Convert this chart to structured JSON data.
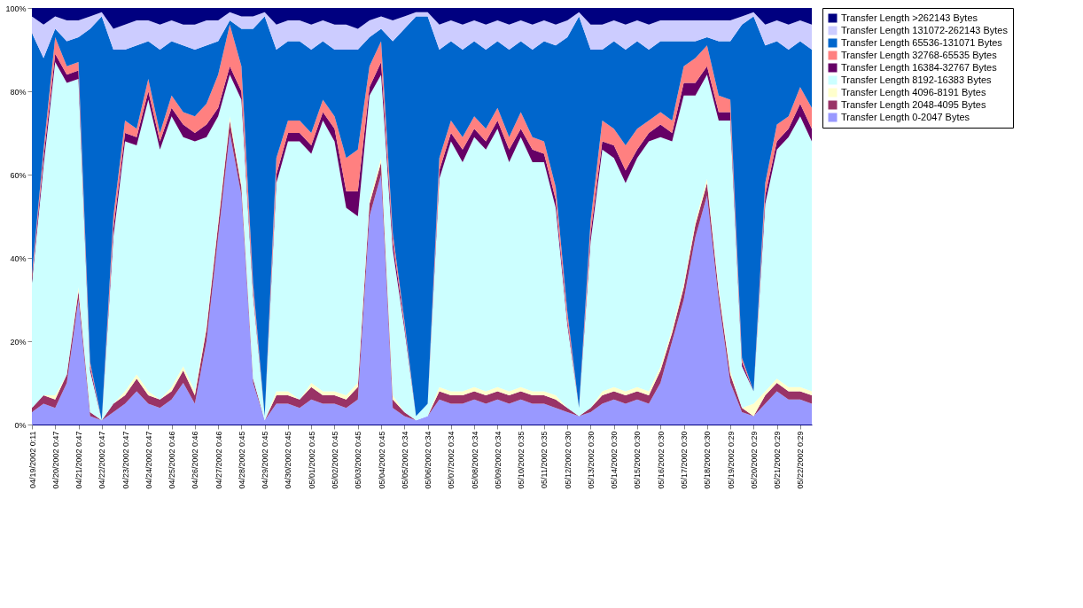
{
  "chart_data": {
    "type": "area",
    "stacked": true,
    "categories": [
      "04/19/2002 0:11",
      null,
      "04/20/2002 0:47",
      null,
      "04/21/2002 0:47",
      null,
      "04/22/2002 0:47",
      null,
      "04/23/2002 0:47",
      null,
      "04/24/2002 0:47",
      null,
      "04/25/2002 0:46",
      null,
      "04/26/2002 0:46",
      null,
      "04/27/2002 0:46",
      null,
      "04/28/2002 0:45",
      null,
      "04/29/2002 0:45",
      null,
      "04/30/2002 0:45",
      null,
      "05/01/2002 0:45",
      null,
      "05/02/2002 0:45",
      null,
      "05/03/2002 0:45",
      null,
      "05/04/2002 0:45",
      null,
      "05/05/2002 0:34",
      null,
      "05/06/2002 0:34",
      null,
      "05/07/2002 0:34",
      null,
      "05/08/2002 0:34",
      null,
      "05/09/2002 0:34",
      null,
      "05/10/2002 0:35",
      null,
      "05/11/2002 0:35",
      null,
      "05/12/2002 0:30",
      null,
      "05/13/2002 0:30",
      null,
      "05/14/2002 0:30",
      null,
      "05/15/2002 0:30",
      null,
      "05/16/2002 0:30",
      null,
      "05/17/2002 0:30",
      null,
      "05/18/2002 0:30",
      null,
      "05/19/2002 0:29",
      null,
      "05/20/2002 0:29",
      null,
      "05/21/2002 0:29",
      null,
      "05/22/2002 0:29",
      null
    ],
    "ylim": [
      0,
      100
    ],
    "yticks": [
      {
        "value": 0,
        "label": "0%"
      },
      {
        "value": 20,
        "label": "20%"
      },
      {
        "value": 40,
        "label": "40%"
      },
      {
        "value": 60,
        "label": "60%"
      },
      {
        "value": 80,
        "label": "80%"
      },
      {
        "value": 100,
        "label": "100%"
      }
    ],
    "legend": "right",
    "series": [
      {
        "name": "Transfer Length 0-2047 Bytes",
        "color": "#9999ff",
        "values": [
          3,
          5,
          4,
          10,
          30,
          2,
          1,
          3,
          5,
          8,
          5,
          4,
          6,
          10,
          5,
          20,
          45,
          70,
          55,
          10,
          1,
          5,
          5,
          4,
          6,
          5,
          5,
          4,
          6,
          50,
          60,
          4,
          2,
          1,
          2,
          6,
          5,
          5,
          6,
          5,
          6,
          5,
          6,
          5,
          5,
          4,
          3,
          2,
          3,
          5,
          6,
          5,
          6,
          5,
          10,
          20,
          30,
          45,
          55,
          30,
          10,
          3,
          2,
          5,
          8,
          6,
          6,
          5
        ]
      },
      {
        "name": "Transfer Length 2048-4095 Bytes",
        "color": "#993366",
        "values": [
          1,
          2,
          2,
          2,
          2,
          1,
          0,
          2,
          2,
          3,
          2,
          2,
          2,
          3,
          2,
          3,
          3,
          3,
          2,
          1,
          0,
          2,
          2,
          2,
          3,
          2,
          2,
          2,
          3,
          3,
          3,
          2,
          1,
          0,
          0,
          2,
          2,
          2,
          2,
          2,
          2,
          2,
          2,
          2,
          2,
          2,
          1,
          0,
          1,
          2,
          2,
          2,
          2,
          2,
          3,
          2,
          3,
          3,
          3,
          2,
          2,
          1,
          0,
          2,
          2,
          2,
          2,
          2
        ]
      },
      {
        "name": "Transfer Length 4096-8191 Bytes",
        "color": "#ffffcc",
        "values": [
          0,
          0,
          1,
          0,
          1,
          0,
          0,
          0,
          1,
          1,
          1,
          0,
          1,
          1,
          1,
          1,
          1,
          1,
          1,
          0,
          0,
          1,
          1,
          0,
          1,
          1,
          1,
          1,
          1,
          1,
          1,
          1,
          0,
          0,
          0,
          1,
          1,
          1,
          1,
          1,
          1,
          1,
          1,
          1,
          1,
          1,
          0,
          0,
          0,
          1,
          1,
          1,
          1,
          1,
          1,
          1,
          1,
          1,
          1,
          1,
          1,
          0,
          3,
          1,
          1,
          1,
          1,
          1
        ]
      },
      {
        "name": "Transfer Length 8192-16383 Bytes",
        "color": "#ccffff",
        "values": [
          30,
          55,
          80,
          70,
          50,
          10,
          0,
          40,
          60,
          55,
          70,
          60,
          65,
          55,
          60,
          45,
          25,
          10,
          20,
          20,
          1,
          50,
          60,
          62,
          55,
          65,
          60,
          45,
          40,
          25,
          20,
          35,
          20,
          1,
          3,
          50,
          60,
          55,
          60,
          58,
          62,
          55,
          60,
          55,
          55,
          45,
          20,
          2,
          40,
          58,
          55,
          50,
          55,
          60,
          55,
          45,
          45,
          30,
          25,
          40,
          60,
          10,
          3,
          45,
          55,
          60,
          65,
          60
        ]
      },
      {
        "name": "Transfer Length 16384-32767 Bytes",
        "color": "#660066",
        "values": [
          1,
          2,
          2,
          2,
          2,
          1,
          0,
          2,
          2,
          2,
          2,
          2,
          2,
          3,
          2,
          3,
          2,
          2,
          2,
          1,
          0,
          2,
          2,
          2,
          2,
          2,
          3,
          4,
          6,
          2,
          3,
          2,
          1,
          0,
          0,
          2,
          2,
          3,
          2,
          2,
          2,
          3,
          2,
          3,
          2,
          2,
          1,
          0,
          2,
          2,
          3,
          3,
          2,
          2,
          3,
          2,
          3,
          3,
          2,
          2,
          2,
          1,
          0,
          2,
          2,
          2,
          3,
          3
        ]
      },
      {
        "name": "Transfer Length 32768-65535 Bytes",
        "color": "#ff8080",
        "values": [
          1,
          2,
          4,
          2,
          2,
          1,
          0,
          3,
          3,
          2,
          3,
          2,
          3,
          3,
          4,
          5,
          8,
          10,
          6,
          2,
          0,
          4,
          3,
          3,
          3,
          3,
          3,
          8,
          10,
          5,
          5,
          2,
          1,
          0,
          0,
          3,
          3,
          3,
          3,
          3,
          3,
          3,
          4,
          3,
          3,
          3,
          2,
          0,
          3,
          5,
          4,
          6,
          5,
          3,
          3,
          3,
          4,
          6,
          5,
          4,
          3,
          1,
          0,
          3,
          4,
          3,
          4,
          5
        ]
      },
      {
        "name": "Transfer Length 65536-131071 Bytes",
        "color": "#0066cc",
        "values": [
          58,
          22,
          2,
          6,
          6,
          80,
          97,
          40,
          17,
          20,
          9,
          20,
          13,
          16,
          16,
          14,
          8,
          1,
          9,
          61,
          96,
          26,
          19,
          19,
          20,
          14,
          16,
          26,
          24,
          7,
          3,
          46,
          70,
          96,
          93,
          26,
          19,
          21,
          18,
          19,
          16,
          21,
          17,
          21,
          24,
          34,
          66,
          94,
          41,
          17,
          21,
          23,
          21,
          17,
          17,
          19,
          6,
          4,
          2,
          13,
          14,
          80,
          90,
          33,
          20,
          16,
          11,
          14
        ]
      },
      {
        "name": "Transfer Length 131072-262143 Bytes",
        "color": "#ccccff",
        "values": [
          4,
          8,
          3,
          5,
          4,
          3,
          1,
          5,
          6,
          6,
          5,
          6,
          5,
          5,
          6,
          6,
          5,
          2,
          3,
          3,
          1,
          6,
          5,
          5,
          6,
          5,
          6,
          6,
          5,
          4,
          3,
          5,
          3,
          1,
          1,
          6,
          5,
          6,
          5,
          6,
          5,
          6,
          5,
          6,
          5,
          5,
          4,
          1,
          6,
          6,
          5,
          6,
          5,
          6,
          5,
          5,
          5,
          5,
          4,
          5,
          5,
          2,
          1,
          5,
          5,
          6,
          5,
          6
        ]
      },
      {
        "name": "Transfer Length >262143 Bytes",
        "color": "#000080",
        "values": [
          2,
          4,
          2,
          3,
          3,
          2,
          1,
          5,
          4,
          3,
          3,
          4,
          3,
          4,
          4,
          3,
          3,
          1,
          2,
          2,
          1,
          4,
          3,
          3,
          4,
          3,
          4,
          4,
          5,
          3,
          2,
          3,
          2,
          1,
          1,
          4,
          3,
          4,
          3,
          4,
          3,
          4,
          3,
          4,
          3,
          4,
          3,
          1,
          4,
          4,
          3,
          4,
          3,
          4,
          3,
          3,
          3,
          3,
          3,
          3,
          3,
          2,
          1,
          4,
          3,
          4,
          3,
          4
        ]
      }
    ]
  }
}
